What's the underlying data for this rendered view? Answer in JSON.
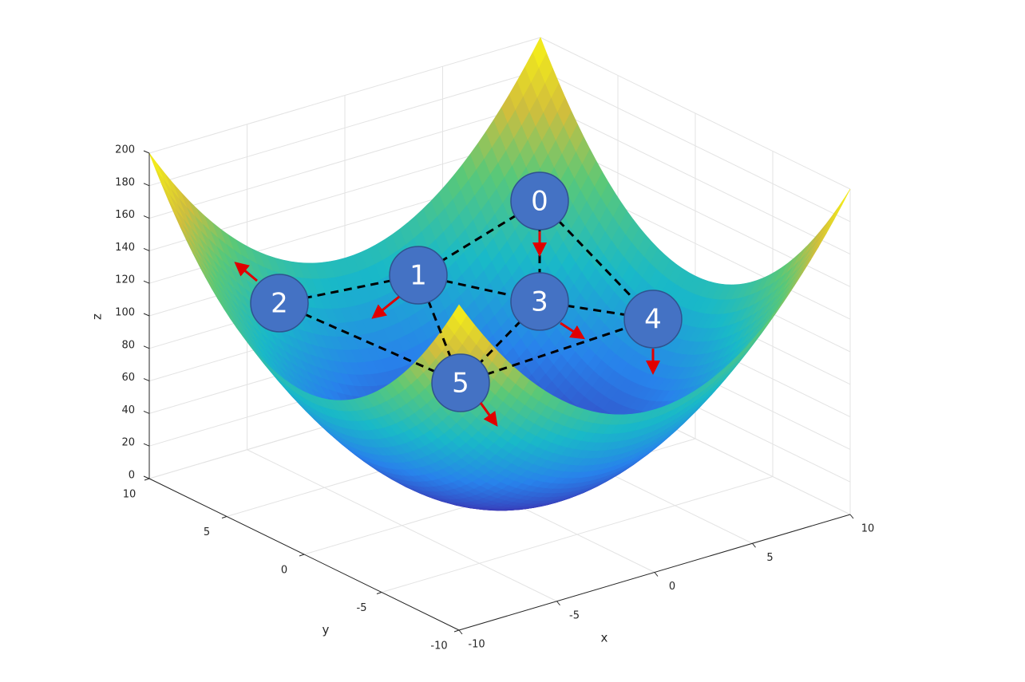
{
  "chart_data": {
    "type": "surface3d",
    "xlabel": "x",
    "ylabel": "y",
    "zlabel": "z",
    "xlim": [
      -10,
      10
    ],
    "ylim": [
      -10,
      10
    ],
    "zlim": [
      0,
      200
    ],
    "xticks": [
      -10,
      -5,
      0,
      5,
      10
    ],
    "yticks": [
      -10,
      -5,
      0,
      5,
      10
    ],
    "zticks": [
      0,
      20,
      40,
      60,
      80,
      100,
      120,
      140,
      160,
      180,
      200
    ],
    "grid": true,
    "nodes": [
      "0",
      "1",
      "2",
      "3",
      "4",
      "5"
    ],
    "node_color": "#4472c4",
    "edge_color": "#000000",
    "arrow_color": "#e00000"
  }
}
